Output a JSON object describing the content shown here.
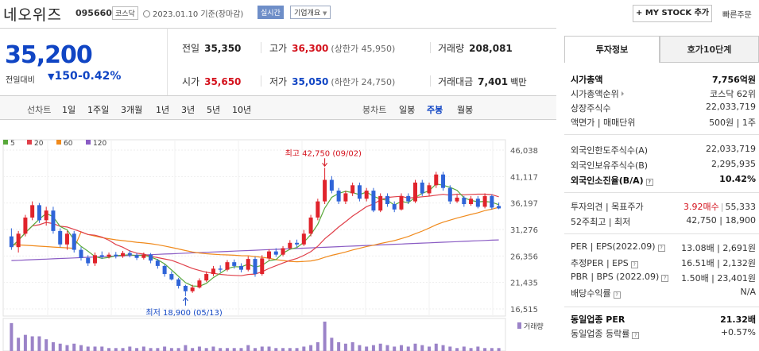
{
  "header": {
    "name": "네오위즈",
    "code": "095660",
    "market": "코스닥",
    "date": "2023.01.10 기준(장마감)",
    "realtime": "실시간",
    "overview": "기업개요",
    "mystock": "MY STOCK 추가",
    "quick_order": "빠른주문"
  },
  "price": {
    "current": "35,200",
    "change_label": "전일대비",
    "change": "150",
    "change_pct": "-0.42%"
  },
  "info": {
    "prev_close_label": "전일",
    "prev_close": "35,350",
    "high_label": "고가",
    "high": "36,300",
    "upper_limit": "(상한가 45,950)",
    "volume_label": "거래량",
    "volume": "208,081",
    "open_label": "시가",
    "open": "35,650",
    "low_label": "저가",
    "low": "35,050",
    "lower_limit": "(하한가 24,750)",
    "amount_label": "거래대금",
    "amount": "7,401",
    "amount_unit": "백만"
  },
  "chart_tabs": {
    "line_label": "선차트",
    "line": [
      "1일",
      "1주일",
      "3개월",
      "1년",
      "3년",
      "5년",
      "10년"
    ],
    "candle_label": "봉차트",
    "candle": [
      "일봉",
      "주봉",
      "월봉"
    ],
    "candle_selected": 1
  },
  "chart_data": {
    "type": "candlestick",
    "legend": [
      {
        "name": "5",
        "color": "#58a83a"
      },
      {
        "name": "20",
        "color": "#e0404a"
      },
      {
        "name": "60",
        "color": "#f08a1c"
      },
      {
        "name": "120",
        "color": "#8a5cc4"
      }
    ],
    "ylim": [
      16515,
      46038
    ],
    "yticks": [
      "46,038",
      "41,117",
      "36,197",
      "31,276",
      "26,356",
      "21,435",
      "16,515"
    ],
    "high_annotation": "최고 42,750 (09/02)",
    "low_annotation": "최저 18,900 (05/13)",
    "volume_label": "거래량",
    "candles": [
      [
        30000,
        28000,
        31500,
        27500
      ],
      [
        28000,
        30500,
        31000,
        27000
      ],
      [
        30500,
        33500,
        34000,
        30000
      ],
      [
        33500,
        35800,
        36500,
        33000
      ],
      [
        35800,
        33000,
        36200,
        32500
      ],
      [
        33000,
        34800,
        35500,
        32000
      ],
      [
        34800,
        31000,
        35500,
        30500
      ],
      [
        31000,
        28500,
        31500,
        28000
      ],
      [
        28500,
        30500,
        31000,
        27500
      ],
      [
        30500,
        27500,
        31000,
        27000
      ],
      [
        27500,
        26000,
        28000,
        25500
      ],
      [
        26000,
        25000,
        26500,
        24500
      ],
      [
        25000,
        26500,
        27000,
        24500
      ],
      [
        26500,
        26200,
        27200,
        25800
      ],
      [
        26200,
        26600,
        27000,
        25900
      ],
      [
        26600,
        26300,
        27100,
        25900
      ],
      [
        26300,
        26900,
        27300,
        26000
      ],
      [
        26900,
        26500,
        27400,
        26100
      ],
      [
        26500,
        26000,
        26900,
        25600
      ],
      [
        26000,
        26600,
        27000,
        25700
      ],
      [
        26600,
        25500,
        26900,
        25000
      ],
      [
        25500,
        24500,
        25800,
        24000
      ],
      [
        24500,
        23000,
        24800,
        22500
      ],
      [
        23000,
        22000,
        23500,
        21800
      ],
      [
        22000,
        20800,
        22300,
        20300
      ],
      [
        20800,
        19800,
        21000,
        18900
      ],
      [
        19800,
        20500,
        21000,
        19500
      ],
      [
        20500,
        21800,
        22200,
        20300
      ],
      [
        21800,
        23000,
        23500,
        21500
      ],
      [
        23000,
        24000,
        24500,
        22600
      ],
      [
        24000,
        23800,
        24600,
        23300
      ],
      [
        23800,
        25200,
        25600,
        23500
      ],
      [
        25200,
        24500,
        25700,
        24000
      ],
      [
        24500,
        23800,
        25000,
        23300
      ],
      [
        23800,
        25800,
        26300,
        23500
      ],
      [
        25800,
        23000,
        26200,
        22500
      ],
      [
        23000,
        25900,
        26500,
        22700
      ],
      [
        25900,
        27200,
        27600,
        25500
      ],
      [
        27200,
        26600,
        27800,
        26200
      ],
      [
        26600,
        27800,
        28200,
        26300
      ],
      [
        27800,
        28800,
        29300,
        27500
      ],
      [
        28800,
        28500,
        29400,
        28000
      ],
      [
        28500,
        30500,
        31200,
        28200
      ],
      [
        30500,
        33500,
        34000,
        30000
      ],
      [
        33500,
        36500,
        37000,
        33000
      ],
      [
        36500,
        40500,
        42750,
        36000
      ],
      [
        40500,
        38500,
        41200,
        38000
      ],
      [
        38500,
        36500,
        39000,
        36000
      ],
      [
        36500,
        38000,
        38500,
        36000
      ],
      [
        38000,
        39500,
        40000,
        37500
      ],
      [
        39500,
        37000,
        40000,
        36500
      ],
      [
        37000,
        38500,
        39000,
        36500
      ],
      [
        38500,
        34800,
        39000,
        34500
      ],
      [
        34800,
        37500,
        38000,
        34500
      ],
      [
        37500,
        36000,
        38000,
        35500
      ],
      [
        36000,
        35000,
        36500,
        34500
      ],
      [
        35000,
        37500,
        38000,
        34800
      ],
      [
        37500,
        36500,
        38000,
        36000
      ],
      [
        36500,
        40000,
        40500,
        36200
      ],
      [
        40000,
        38000,
        40500,
        37500
      ],
      [
        38000,
        39500,
        40000,
        37500
      ],
      [
        39500,
        41500,
        42000,
        39000
      ],
      [
        41500,
        39000,
        42000,
        38500
      ],
      [
        39000,
        36500,
        39500,
        36000
      ],
      [
        36500,
        37200,
        37700,
        36200
      ],
      [
        37200,
        36000,
        37500,
        35500
      ],
      [
        36000,
        37000,
        37500,
        35700
      ],
      [
        37000,
        35500,
        37500,
        35200
      ],
      [
        35500,
        37500,
        38000,
        35200
      ],
      [
        37500,
        35350,
        37800,
        35000
      ],
      [
        35650,
        35200,
        36300,
        35050
      ]
    ],
    "volumes": [
      0.95,
      0.45,
      0.55,
      0.5,
      0.5,
      0.4,
      0.3,
      0.25,
      0.2,
      0.25,
      0.2,
      0.15,
      0.15,
      0.15,
      0.1,
      0.1,
      0.1,
      0.15,
      0.1,
      0.15,
      0.1,
      0.1,
      0.15,
      0.1,
      0.1,
      0.2,
      0.1,
      0.15,
      0.1,
      0.15,
      0.1,
      0.1,
      0.1,
      0.1,
      0.2,
      0.1,
      0.15,
      0.15,
      0.1,
      0.1,
      0.1,
      0.1,
      0.15,
      0.2,
      0.3,
      1.0,
      0.45,
      0.3,
      0.25,
      0.3,
      0.2,
      0.15,
      0.2,
      0.25,
      0.2,
      0.15,
      0.2,
      0.15,
      0.25,
      0.2,
      0.15,
      0.25,
      0.2,
      0.15,
      0.1,
      0.15,
      0.1,
      0.15,
      0.1,
      0.1,
      0.1
    ]
  },
  "right_panel": {
    "tab_info": "투자정보",
    "tab_quote": "호가10단계",
    "rows1": [
      {
        "l": "시가총액",
        "r": "7,756억원",
        "b": true
      },
      {
        "l": "시가총액순위",
        "r": "코스닥 62위",
        "tri": true
      },
      {
        "l": "상장주식수",
        "r": "22,033,719"
      },
      {
        "l": "액면가 | 매매단위",
        "r": "500원 | 1주"
      }
    ],
    "rows2": [
      {
        "l": "외국인한도주식수(A)",
        "r": "22,033,719"
      },
      {
        "l": "외국인보유주식수(B)",
        "r": "2,295,935"
      },
      {
        "l": "외국인소진율(B/A)",
        "r": "10.42%",
        "b": true,
        "ic": true
      }
    ],
    "opinion_label": "투자의견 | 목표주가",
    "opinion_value": "3.92매수",
    "target_price": "55,333",
    "week52_label": "52주최고 | 최저",
    "week52_value": "42,750 | 18,900",
    "rows4": [
      {
        "l": "PER | EPS(2022.09)",
        "r": "13.08배 | 2,691원",
        "ic": true
      },
      {
        "l": "추정PER | EPS",
        "r": "16.51배 | 2,132원",
        "ic": true
      },
      {
        "l": "PBR | BPS (2022.09)",
        "r": "1.50배 | 23,401원",
        "ic": true
      },
      {
        "l": "배당수익률",
        "r": "N/A",
        "ic": true
      }
    ],
    "sector_per_label": "동일업종 PER",
    "sector_per": "21.32배",
    "sector_rate_label": "동일업종 등락률",
    "sector_rate": "+0.57%"
  }
}
